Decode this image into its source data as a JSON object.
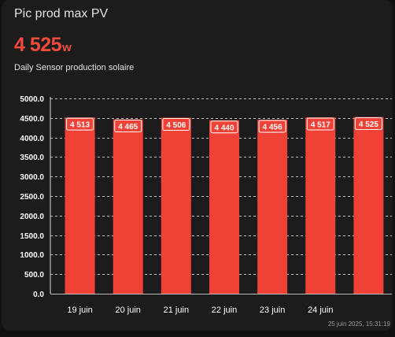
{
  "card": {
    "title": "Pic prod max PV",
    "value": "4 525",
    "unit": "w",
    "sensor_label": "Daily Sensor production solaire",
    "timestamp": "25 juin 2025, 15:31:19"
  },
  "colors": {
    "accent": "#f04a3c",
    "bar": "#ef4136",
    "background": "#1c1c1c",
    "grid": "#d8d8d8"
  },
  "chart_data": {
    "type": "bar",
    "categories": [
      "19 juin",
      "20 juin",
      "21 juin",
      "22 juin",
      "23 juin",
      "24 juin",
      ""
    ],
    "values": [
      4513,
      4465,
      4506,
      4440,
      4456,
      4517,
      4525
    ],
    "data_labels": [
      "4 513",
      "4 465",
      "4 506",
      "4 440",
      "4 456",
      "4 517",
      "4 525"
    ],
    "y_ticks": [
      "0.0",
      "500.0",
      "1000.0",
      "1500.0",
      "2000.0",
      "2500.0",
      "3000.0",
      "3500.0",
      "4000.0",
      "4500.0",
      "5000.0"
    ],
    "ylim": [
      0,
      5000
    ],
    "grid": true,
    "title": "",
    "xlabel": "",
    "ylabel": ""
  }
}
